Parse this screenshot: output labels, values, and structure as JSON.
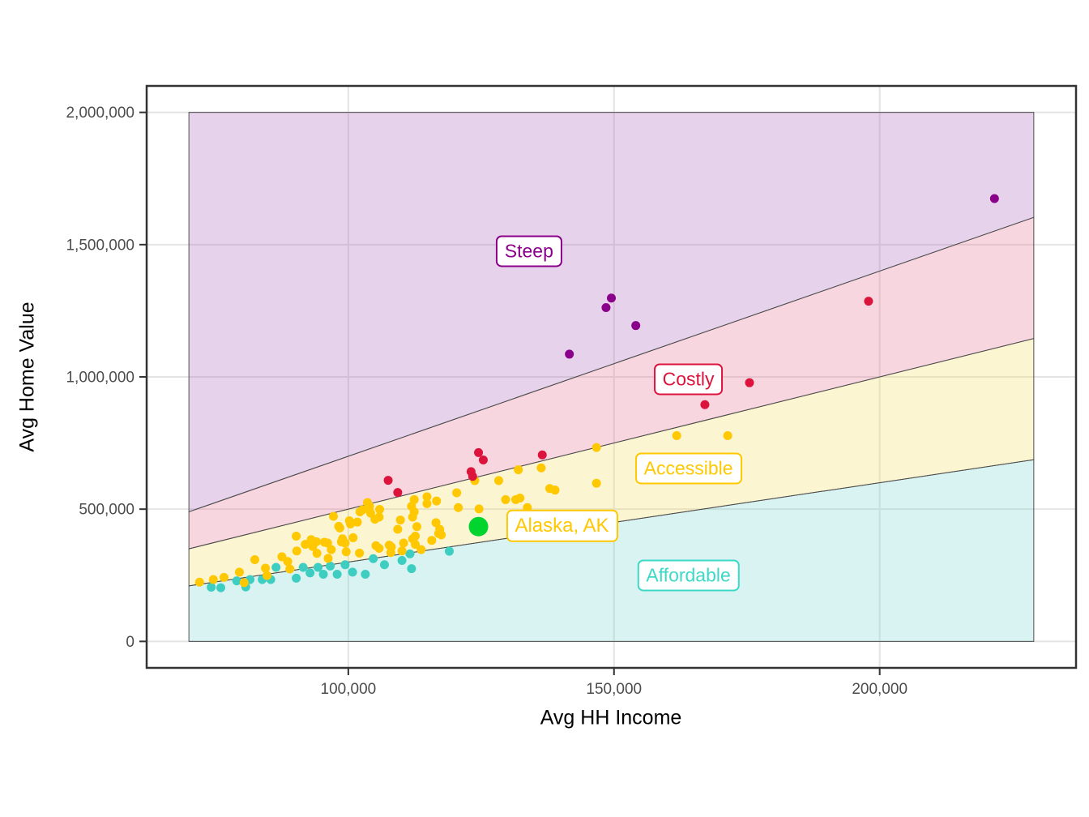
{
  "chart_data": {
    "type": "scatter",
    "xlabel": "Avg HH Income",
    "ylabel": "Avg Home Value",
    "xlim": [
      62050,
      236950
    ],
    "ylim": [
      -100000,
      2100000
    ],
    "x_ticks": [
      100000,
      150000,
      200000
    ],
    "x_tick_labels": [
      "100,000",
      "150,000",
      "200,000"
    ],
    "y_ticks": [
      0,
      500000,
      1000000,
      1500000,
      2000000
    ],
    "y_tick_labels": [
      "0",
      "500,000",
      "1,000,000",
      "1,500,000",
      "2,000,000"
    ],
    "grid": true,
    "region_income_range": [
      70000,
      229000
    ],
    "value_cap": 2000000,
    "boundary_ratios": [
      3,
      5,
      7
    ],
    "regions": [
      {
        "name": "Affordable",
        "ratio_range": [
          0,
          3
        ],
        "fill": "rgba(125,215,208,0.30)",
        "label_color": "#3DD9C8",
        "label_at": {
          "income": 164000,
          "value": 248000
        }
      },
      {
        "name": "Accessible",
        "ratio_range": [
          3,
          5
        ],
        "fill": "rgba(245,222,105,0.30)",
        "label_color": "#FFC800",
        "label_at": {
          "income": 164000,
          "value": 655000
        }
      },
      {
        "name": "Costly",
        "ratio_range": [
          5,
          7
        ],
        "fill": "rgba(232,118,148,0.30)",
        "label_color": "#DC143C",
        "label_at": {
          "income": 164000,
          "value": 990000
        }
      },
      {
        "name": "Steep",
        "ratio_range": [
          7,
          null
        ],
        "fill": "rgba(172,108,188,0.30)",
        "label_color": "#8B008B",
        "label_at": {
          "income": 134000,
          "value": 1475000
        }
      }
    ],
    "highlight": {
      "label": "Alaska, AK",
      "income": 124500,
      "value": 434000,
      "color": "#00D42E",
      "label_color": "#FFC800",
      "label_at": {
        "income": 140200,
        "value": 437000
      }
    },
    "series": [
      {
        "name": "affordable-points",
        "color": "#3DCEC1",
        "points": [
          [
            74200,
            205000
          ],
          [
            76000,
            203000
          ],
          [
            79000,
            229000
          ],
          [
            80700,
            206000
          ],
          [
            81500,
            234000
          ],
          [
            83800,
            234000
          ],
          [
            85400,
            234000
          ],
          [
            86400,
            280000
          ],
          [
            90200,
            239000
          ],
          [
            91500,
            280000
          ],
          [
            92800,
            259000
          ],
          [
            94300,
            280000
          ],
          [
            95300,
            254000
          ],
          [
            96600,
            285000
          ],
          [
            97900,
            254000
          ],
          [
            99400,
            290000
          ],
          [
            100800,
            262000
          ],
          [
            103200,
            254000
          ],
          [
            104700,
            313000
          ],
          [
            106800,
            290000
          ],
          [
            110100,
            306000
          ],
          [
            111600,
            331000
          ],
          [
            111900,
            275000
          ],
          [
            119000,
            341000
          ]
        ]
      },
      {
        "name": "accessible-points",
        "color": "#FFC800",
        "points": [
          [
            72000,
            224000
          ],
          [
            74600,
            234000
          ],
          [
            76600,
            242000
          ],
          [
            79500,
            262000
          ],
          [
            80400,
            222000
          ],
          [
            82400,
            309000
          ],
          [
            84400,
            277000
          ],
          [
            84700,
            249000
          ],
          [
            87500,
            320000
          ],
          [
            88600,
            302000
          ],
          [
            89000,
            274000
          ],
          [
            90200,
            398000
          ],
          [
            90300,
            342000
          ],
          [
            91900,
            367000
          ],
          [
            93000,
            385000
          ],
          [
            93300,
            359000
          ],
          [
            94100,
            333000
          ],
          [
            94000,
            377000
          ],
          [
            95500,
            375000
          ],
          [
            96200,
            314000
          ],
          [
            96800,
            347000
          ],
          [
            96100,
            372000
          ],
          [
            97200,
            473000
          ],
          [
            98200,
            435000
          ],
          [
            98400,
            429000
          ],
          [
            98700,
            376000
          ],
          [
            98900,
            388000
          ],
          [
            99400,
            372000
          ],
          [
            99600,
            339000
          ],
          [
            100200,
            456000
          ],
          [
            100400,
            444000
          ],
          [
            100900,
            392000
          ],
          [
            101700,
            451000
          ],
          [
            102100,
            334000
          ],
          [
            102200,
            490000
          ],
          [
            102700,
            498000
          ],
          [
            103600,
            525000
          ],
          [
            104000,
            511000
          ],
          [
            104200,
            485000
          ],
          [
            105000,
            462000
          ],
          [
            105200,
            362000
          ],
          [
            105800,
            470000
          ],
          [
            105800,
            352000
          ],
          [
            105900,
            499000
          ],
          [
            107700,
            364000
          ],
          [
            108000,
            336000
          ],
          [
            108100,
            357000
          ],
          [
            109300,
            424000
          ],
          [
            109800,
            459000
          ],
          [
            110400,
            372000
          ],
          [
            110100,
            342000
          ],
          [
            111900,
            511000
          ],
          [
            112100,
            470000
          ],
          [
            112100,
            388000
          ],
          [
            112400,
            536000
          ],
          [
            112400,
            490000
          ],
          [
            112600,
            398000
          ],
          [
            112600,
            367000
          ],
          [
            112900,
            434000
          ],
          [
            113700,
            347000
          ],
          [
            114800,
            547000
          ],
          [
            114800,
            521000
          ],
          [
            115700,
            382000
          ],
          [
            116500,
            449000
          ],
          [
            116600,
            531000
          ],
          [
            117000,
            408000
          ],
          [
            117200,
            424000
          ],
          [
            117500,
            403000
          ],
          [
            120400,
            562000
          ],
          [
            120700,
            506000
          ],
          [
            123800,
            608000
          ],
          [
            124600,
            501000
          ],
          [
            128300,
            608000
          ],
          [
            129600,
            536000
          ],
          [
            131500,
            536000
          ],
          [
            132000,
            649000
          ],
          [
            132300,
            542000
          ],
          [
            133700,
            506000
          ],
          [
            136300,
            656000
          ],
          [
            137900,
            578000
          ],
          [
            138900,
            572000
          ],
          [
            146700,
            733000
          ],
          [
            146700,
            598000
          ],
          [
            161800,
            778000
          ],
          [
            171400,
            778000
          ]
        ]
      },
      {
        "name": "costly-points",
        "color": "#DC143C",
        "points": [
          [
            107500,
            609000
          ],
          [
            109300,
            563000
          ],
          [
            123100,
            642000
          ],
          [
            123400,
            624000
          ],
          [
            124500,
            714000
          ],
          [
            125400,
            686000
          ],
          [
            136500,
            705000
          ],
          [
            167100,
            895000
          ],
          [
            175500,
            978000
          ],
          [
            197900,
            1286000
          ]
        ]
      },
      {
        "name": "steep-points",
        "color": "#8B008B",
        "points": [
          [
            141600,
            1086000
          ],
          [
            148500,
            1262000
          ],
          [
            149500,
            1298000
          ],
          [
            154100,
            1194000
          ],
          [
            221600,
            1674000
          ]
        ]
      }
    ],
    "style": {
      "background": "#FFFFFF",
      "grid_color": "#E4E4E4",
      "panel_border_color": "#333333",
      "boundary_line_color": "#4D4D4D",
      "tick_color": "#333333",
      "tick_label_color": "#4D4D4D"
    }
  }
}
